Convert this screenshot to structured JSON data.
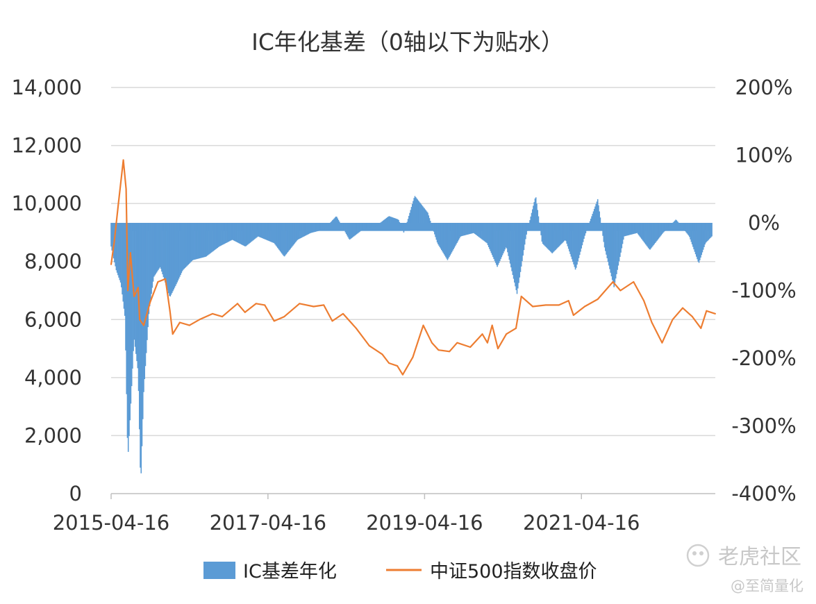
{
  "chart_data": {
    "type": "bar+line",
    "title": "IC年化基差（0轴以下为贴水）",
    "x_tick_labels": [
      "2015-04-16",
      "2017-04-16",
      "2019-04-16",
      "2021-04-16"
    ],
    "x_range": [
      "2015-04-16",
      "2022-12-31"
    ],
    "left_axis": {
      "ylim": [
        0,
        14000
      ],
      "tick_labels": [
        "0",
        "2,000",
        "4,000",
        "6,000",
        "8,000",
        "10,000",
        "12,000",
        "14,000"
      ]
    },
    "right_axis": {
      "ylim": [
        -4.0,
        2.0
      ],
      "tick_labels": [
        "-400%",
        "-300%",
        "-200%",
        "-100%",
        "0%",
        "100%",
        "200%"
      ]
    },
    "grid": true,
    "legend_position": "bottom",
    "series": [
      {
        "name": "IC基差年化",
        "type": "bar",
        "axis": "right",
        "color": "#5b9bd5",
        "points": [
          [
            "2015-04-16",
            -0.35
          ],
          [
            "2015-05-10",
            -0.7
          ],
          [
            "2015-06-01",
            -0.9
          ],
          [
            "2015-06-20",
            -1.4
          ],
          [
            "2015-07-03",
            -3.5
          ],
          [
            "2015-07-15",
            -2.8
          ],
          [
            "2015-08-01",
            -1.7
          ],
          [
            "2015-08-20",
            -2.2
          ],
          [
            "2015-09-01",
            -3.9
          ],
          [
            "2015-09-15",
            -2.5
          ],
          [
            "2015-10-10",
            -1.3
          ],
          [
            "2015-11-01",
            -0.8
          ],
          [
            "2015-12-01",
            -0.65
          ],
          [
            "2016-01-15",
            -1.1
          ],
          [
            "2016-02-15",
            -0.9
          ],
          [
            "2016-03-15",
            -0.7
          ],
          [
            "2016-05-01",
            -0.55
          ],
          [
            "2016-07-01",
            -0.5
          ],
          [
            "2016-09-01",
            -0.35
          ],
          [
            "2016-11-01",
            -0.25
          ],
          [
            "2017-01-01",
            -0.35
          ],
          [
            "2017-03-01",
            -0.2
          ],
          [
            "2017-05-15",
            -0.3
          ],
          [
            "2017-07-01",
            -0.5
          ],
          [
            "2017-09-01",
            -0.25
          ],
          [
            "2017-11-01",
            -0.15
          ],
          [
            "2018-01-01",
            -0.1
          ],
          [
            "2018-03-01",
            0.1
          ],
          [
            "2018-05-01",
            -0.25
          ],
          [
            "2018-07-01",
            -0.1
          ],
          [
            "2018-09-01",
            -0.05
          ],
          [
            "2018-11-01",
            0.1
          ],
          [
            "2018-12-15",
            0.05
          ],
          [
            "2019-01-10",
            -0.15
          ],
          [
            "2019-03-01",
            0.4
          ],
          [
            "2019-05-01",
            0.15
          ],
          [
            "2019-06-15",
            -0.3
          ],
          [
            "2019-08-01",
            -0.55
          ],
          [
            "2019-10-01",
            -0.2
          ],
          [
            "2019-12-01",
            -0.15
          ],
          [
            "2020-02-01",
            -0.3
          ],
          [
            "2020-03-20",
            -0.65
          ],
          [
            "2020-05-01",
            -0.35
          ],
          [
            "2020-06-20",
            -1.05
          ],
          [
            "2020-08-01",
            -0.2
          ],
          [
            "2020-09-15",
            0.4
          ],
          [
            "2020-10-15",
            -0.3
          ],
          [
            "2020-12-01",
            -0.45
          ],
          [
            "2021-02-01",
            -0.25
          ],
          [
            "2021-03-20",
            -0.7
          ],
          [
            "2021-05-01",
            -0.2
          ],
          [
            "2021-07-01",
            0.35
          ],
          [
            "2021-08-01",
            -0.35
          ],
          [
            "2021-09-15",
            -0.95
          ],
          [
            "2021-11-01",
            -0.2
          ],
          [
            "2022-01-01",
            -0.15
          ],
          [
            "2022-03-01",
            -0.4
          ],
          [
            "2022-05-01",
            -0.15
          ],
          [
            "2022-07-01",
            0.05
          ],
          [
            "2022-09-01",
            -0.2
          ],
          [
            "2022-10-15",
            -0.6
          ],
          [
            "2022-11-15",
            -0.3
          ],
          [
            "2022-12-15",
            -0.2
          ]
        ]
      },
      {
        "name": "中证500指数收盘价",
        "type": "line",
        "axis": "left",
        "color": "#ed7d31",
        "points": [
          [
            "2015-04-16",
            7900
          ],
          [
            "2015-05-01",
            8700
          ],
          [
            "2015-05-20",
            10000
          ],
          [
            "2015-06-12",
            11500
          ],
          [
            "2015-06-25",
            10500
          ],
          [
            "2015-07-03",
            7000
          ],
          [
            "2015-07-15",
            8300
          ],
          [
            "2015-08-01",
            6800
          ],
          [
            "2015-08-20",
            7100
          ],
          [
            "2015-08-27",
            6000
          ],
          [
            "2015-09-15",
            5800
          ],
          [
            "2015-10-15",
            6600
          ],
          [
            "2015-11-20",
            7300
          ],
          [
            "2015-12-25",
            7400
          ],
          [
            "2016-01-15",
            6300
          ],
          [
            "2016-01-28",
            5500
          ],
          [
            "2016-03-01",
            5900
          ],
          [
            "2016-04-15",
            5800
          ],
          [
            "2016-06-01",
            6000
          ],
          [
            "2016-08-01",
            6200
          ],
          [
            "2016-09-15",
            6100
          ],
          [
            "2016-11-25",
            6550
          ],
          [
            "2016-12-30",
            6250
          ],
          [
            "2017-02-20",
            6550
          ],
          [
            "2017-04-01",
            6500
          ],
          [
            "2017-05-15",
            5950
          ],
          [
            "2017-07-01",
            6100
          ],
          [
            "2017-09-10",
            6550
          ],
          [
            "2017-11-15",
            6450
          ],
          [
            "2018-01-01",
            6500
          ],
          [
            "2018-02-10",
            5950
          ],
          [
            "2018-04-01",
            6200
          ],
          [
            "2018-06-01",
            5700
          ],
          [
            "2018-08-01",
            5100
          ],
          [
            "2018-10-01",
            4800
          ],
          [
            "2018-11-01",
            4500
          ],
          [
            "2018-12-10",
            4400
          ],
          [
            "2019-01-04",
            4100
          ],
          [
            "2019-02-20",
            4700
          ],
          [
            "2019-04-10",
            5800
          ],
          [
            "2019-05-20",
            5200
          ],
          [
            "2019-06-20",
            4950
          ],
          [
            "2019-08-10",
            4900
          ],
          [
            "2019-09-15",
            5200
          ],
          [
            "2019-11-15",
            5050
          ],
          [
            "2020-01-10",
            5500
          ],
          [
            "2020-02-03",
            5200
          ],
          [
            "2020-02-25",
            5800
          ],
          [
            "2020-03-23",
            5000
          ],
          [
            "2020-05-01",
            5500
          ],
          [
            "2020-06-15",
            5700
          ],
          [
            "2020-07-10",
            6800
          ],
          [
            "2020-09-01",
            6450
          ],
          [
            "2020-11-01",
            6500
          ],
          [
            "2021-01-01",
            6500
          ],
          [
            "2021-02-15",
            6650
          ],
          [
            "2021-03-10",
            6150
          ],
          [
            "2021-05-01",
            6450
          ],
          [
            "2021-07-01",
            6700
          ],
          [
            "2021-09-10",
            7300
          ],
          [
            "2021-10-15",
            7000
          ],
          [
            "2021-12-15",
            7300
          ],
          [
            "2022-02-01",
            6650
          ],
          [
            "2022-03-10",
            5900
          ],
          [
            "2022-04-27",
            5200
          ],
          [
            "2022-06-15",
            6000
          ],
          [
            "2022-08-01",
            6400
          ],
          [
            "2022-09-15",
            6100
          ],
          [
            "2022-10-25",
            5700
          ],
          [
            "2022-11-20",
            6300
          ],
          [
            "2022-12-31",
            6200
          ]
        ]
      }
    ]
  },
  "watermark": {
    "brand": "老虎社区",
    "handle": "@至简量化"
  }
}
